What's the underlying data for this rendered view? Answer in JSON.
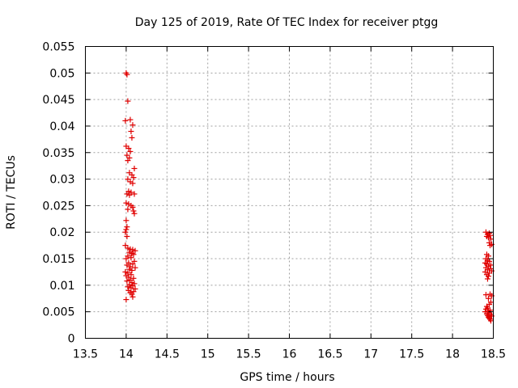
{
  "chart_data": {
    "type": "scatter",
    "title": "Day 125 of 2019, Rate Of TEC Index for receiver ptgg",
    "xlabel": "GPS time / hours",
    "ylabel": "ROTI / TECUs",
    "xlim": [
      13.5,
      18.5
    ],
    "ylim": [
      0,
      0.055
    ],
    "xticks": [
      "13.5",
      "14",
      "14.5",
      "15",
      "15.5",
      "16",
      "16.5",
      "17",
      "17.5",
      "18",
      "18.5"
    ],
    "yticks": [
      "0",
      "0.005",
      "0.01",
      "0.015",
      "0.02",
      "0.025",
      "0.03",
      "0.035",
      "0.04",
      "0.045",
      "0.05",
      "0.055"
    ],
    "grid": true,
    "marker": "+",
    "color": "#e00000",
    "series": [
      {
        "name": "ROTI",
        "points": [
          [
            14.0,
            0.05
          ],
          [
            14.01,
            0.0497
          ],
          [
            14.02,
            0.0447
          ],
          [
            13.99,
            0.041
          ],
          [
            14.05,
            0.0412
          ],
          [
            14.08,
            0.0402
          ],
          [
            14.06,
            0.039
          ],
          [
            14.07,
            0.0378
          ],
          [
            14.0,
            0.0362
          ],
          [
            14.03,
            0.0358
          ],
          [
            14.05,
            0.0352
          ],
          [
            14.01,
            0.0345
          ],
          [
            14.04,
            0.034
          ],
          [
            14.02,
            0.0335
          ],
          [
            14.1,
            0.032
          ],
          [
            14.04,
            0.0312
          ],
          [
            14.07,
            0.0308
          ],
          [
            14.09,
            0.0303
          ],
          [
            14.02,
            0.03
          ],
          [
            14.05,
            0.0295
          ],
          [
            14.08,
            0.0292
          ],
          [
            14.03,
            0.0277
          ],
          [
            14.06,
            0.0275
          ],
          [
            14.01,
            0.0272
          ],
          [
            14.1,
            0.0272
          ],
          [
            14.04,
            0.027
          ],
          [
            14.0,
            0.0255
          ],
          [
            14.03,
            0.0253
          ],
          [
            14.06,
            0.025
          ],
          [
            14.08,
            0.0247
          ],
          [
            14.02,
            0.0243
          ],
          [
            14.09,
            0.024
          ],
          [
            14.1,
            0.0235
          ],
          [
            14.0,
            0.0222
          ],
          [
            14.01,
            0.021
          ],
          [
            14.0,
            0.0205
          ],
          [
            13.99,
            0.02
          ],
          [
            14.01,
            0.0192
          ],
          [
            13.99,
            0.0175
          ],
          [
            14.02,
            0.017
          ],
          [
            14.05,
            0.0168
          ],
          [
            14.08,
            0.0167
          ],
          [
            14.11,
            0.0165
          ],
          [
            14.04,
            0.0162
          ],
          [
            14.07,
            0.016
          ],
          [
            14.09,
            0.0158
          ],
          [
            14.02,
            0.0155
          ],
          [
            14.06,
            0.0152
          ],
          [
            14.0,
            0.015
          ],
          [
            14.1,
            0.0145
          ],
          [
            14.03,
            0.0142
          ],
          [
            14.08,
            0.014
          ],
          [
            14.01,
            0.0138
          ],
          [
            14.05,
            0.0135
          ],
          [
            14.11,
            0.0133
          ],
          [
            14.04,
            0.013
          ],
          [
            14.07,
            0.0128
          ],
          [
            13.99,
            0.0125
          ],
          [
            14.02,
            0.0123
          ],
          [
            14.06,
            0.012
          ],
          [
            14.0,
            0.0118
          ],
          [
            14.03,
            0.0115
          ],
          [
            14.09,
            0.0113
          ],
          [
            14.05,
            0.011
          ],
          [
            14.01,
            0.0108
          ],
          [
            14.07,
            0.0105
          ],
          [
            14.1,
            0.0103
          ],
          [
            14.04,
            0.0101
          ],
          [
            14.08,
            0.0099
          ],
          [
            14.02,
            0.0097
          ],
          [
            14.06,
            0.0095
          ],
          [
            14.11,
            0.0093
          ],
          [
            14.03,
            0.009
          ],
          [
            14.09,
            0.0088
          ],
          [
            14.05,
            0.0086
          ],
          [
            14.07,
            0.0083
          ],
          [
            14.08,
            0.0078
          ],
          [
            14.0,
            0.0073
          ],
          [
            18.41,
            0.02
          ],
          [
            18.45,
            0.0198
          ],
          [
            18.43,
            0.0196
          ],
          [
            18.46,
            0.0194
          ],
          [
            18.42,
            0.0192
          ],
          [
            18.44,
            0.019
          ],
          [
            18.47,
            0.0187
          ],
          [
            18.45,
            0.018
          ],
          [
            18.48,
            0.0177
          ],
          [
            18.46,
            0.0175
          ],
          [
            18.42,
            0.0158
          ],
          [
            18.44,
            0.0155
          ],
          [
            18.41,
            0.015
          ],
          [
            18.43,
            0.0147
          ],
          [
            18.45,
            0.0145
          ],
          [
            18.4,
            0.0142
          ],
          [
            18.42,
            0.014
          ],
          [
            18.47,
            0.0138
          ],
          [
            18.44,
            0.0136
          ],
          [
            18.41,
            0.0133
          ],
          [
            18.46,
            0.0131
          ],
          [
            18.43,
            0.0129
          ],
          [
            18.48,
            0.0127
          ],
          [
            18.4,
            0.0125
          ],
          [
            18.45,
            0.0123
          ],
          [
            18.42,
            0.012
          ],
          [
            18.44,
            0.0117
          ],
          [
            18.43,
            0.0112
          ],
          [
            18.41,
            0.0082
          ],
          [
            18.46,
            0.0083
          ],
          [
            18.48,
            0.008
          ],
          [
            18.44,
            0.0075
          ],
          [
            18.47,
            0.0068
          ],
          [
            18.45,
            0.0064
          ],
          [
            18.42,
            0.006
          ],
          [
            18.43,
            0.0057
          ],
          [
            18.41,
            0.0055
          ],
          [
            18.46,
            0.0053
          ],
          [
            18.44,
            0.0051
          ],
          [
            18.4,
            0.005
          ],
          [
            18.45,
            0.0048
          ],
          [
            18.42,
            0.0046
          ],
          [
            18.47,
            0.0045
          ],
          [
            18.43,
            0.0043
          ],
          [
            18.48,
            0.0042
          ],
          [
            18.44,
            0.004
          ],
          [
            18.45,
            0.0038
          ],
          [
            18.46,
            0.0036
          ],
          [
            18.47,
            0.0033
          ]
        ]
      }
    ]
  }
}
